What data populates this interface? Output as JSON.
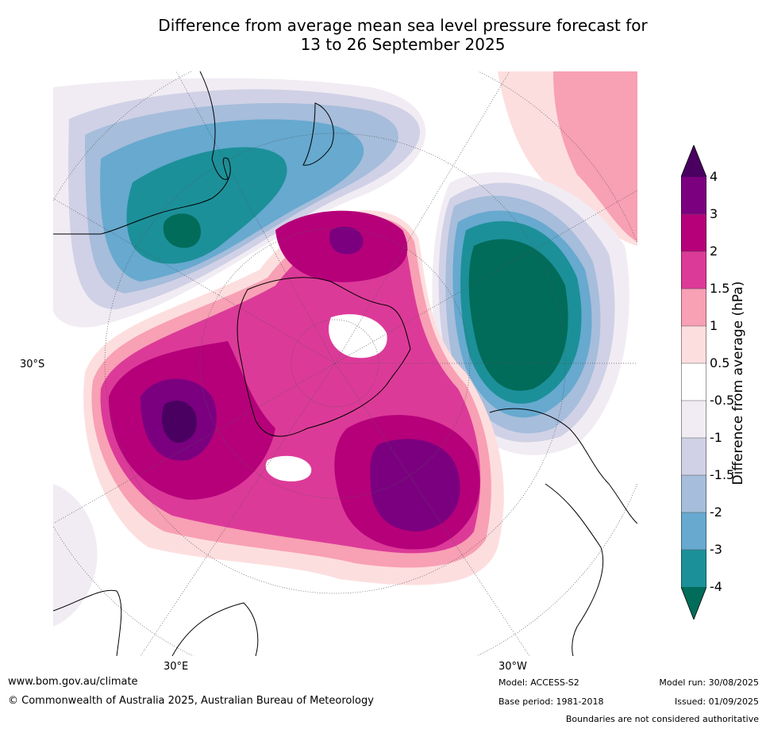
{
  "title_line1": "Difference from average mean sea level pressure forecast for",
  "title_line2": "13 to 26 September 2025",
  "map": {
    "lat_label": "30°S",
    "lon_label_e": "30°E",
    "lon_label_w": "30°W"
  },
  "colorbar": {
    "label": "Difference from average (hPa)",
    "ticks": [
      "4",
      "3",
      "2",
      "1.5",
      "1",
      "0.5",
      "-0.5",
      "-1",
      "-1.5",
      "-2",
      "-3",
      "-4"
    ],
    "colors": {
      "above_4": "#4a0060",
      "3_to_4": "#7b0080",
      "2_to_3": "#b5007a",
      "1.5_to_2": "#dc3a98",
      "1_to_1.5": "#f8a0b4",
      "0.5_to_1": "#fddedf",
      "neutral": "#ffffff",
      "-1_to_-0.5": "#f1ecf3",
      "-1.5_to_-1": "#d0d1e6",
      "-2_to_-1.5": "#a6bddb",
      "-3_to_-2": "#67a9cf",
      "-4_to_-3": "#1c9099",
      "below_-4": "#016c59"
    }
  },
  "footer": {
    "website": "www.bom.gov.au/climate",
    "copyright": "© Commonwealth of Australia 2025, Australian Bureau of Meteorology",
    "model": "Model: ACCESS-S2",
    "base_period": "Base period: 1981-2018",
    "model_run": "Model run: 30/08/2025",
    "issued": "Issued: 01/09/2025",
    "disclaimer": "Boundaries are not considered authoritative"
  }
}
